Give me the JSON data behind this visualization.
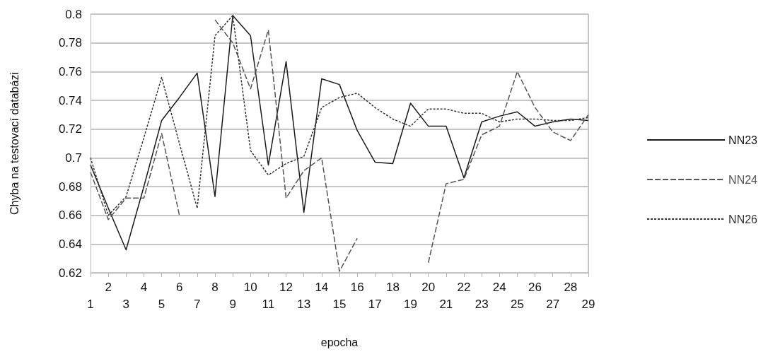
{
  "chart_data": {
    "type": "line",
    "xlabel": "epocha",
    "ylabel": "Chyba na testovací databázi",
    "categories": [
      "1",
      "2",
      "3",
      "4",
      "5",
      "6",
      "7",
      "8",
      "9",
      "10",
      "11",
      "12",
      "13",
      "14",
      "15",
      "16",
      "17",
      "18",
      "19",
      "20",
      "21",
      "22",
      "23",
      "24",
      "25",
      "26",
      "27",
      "28",
      "29"
    ],
    "series": [
      {
        "name": "NN23",
        "color": "#1a1a1a",
        "line_style": "solid",
        "values": [
          0.695,
          0.665,
          0.636,
          0.68,
          0.726,
          0.742,
          0.759,
          0.673,
          0.799,
          0.785,
          0.695,
          0.767,
          0.662,
          0.755,
          0.751,
          0.719,
          0.697,
          0.696,
          0.738,
          0.722,
          0.722,
          0.686,
          0.725,
          0.729,
          0.732,
          0.722,
          0.725,
          0.727,
          0.726
        ]
      },
      {
        "name": "NN24",
        "color": "#555555",
        "line_style": "dashed",
        "values": [
          0.69,
          0.657,
          0.672,
          0.672,
          0.717,
          0.66,
          null,
          0.796,
          0.78,
          0.748,
          0.789,
          0.672,
          0.691,
          0.7,
          0.621,
          0.644,
          null,
          null,
          null,
          0.627,
          0.682,
          0.685,
          0.716,
          0.722,
          0.76,
          0.735,
          0.718,
          0.712,
          0.73
        ]
      },
      {
        "name": "NN26",
        "color": "#333333",
        "line_style": "dotted",
        "values": [
          0.7,
          0.66,
          0.673,
          0.714,
          0.756,
          0.71,
          0.665,
          0.785,
          0.799,
          0.705,
          0.688,
          0.696,
          0.701,
          0.735,
          0.742,
          0.745,
          0.735,
          0.727,
          0.722,
          0.734,
          0.734,
          0.731,
          0.731,
          0.725,
          0.727,
          0.727,
          0.726,
          0.726,
          0.728
        ]
      }
    ],
    "ylim": [
      0.62,
      0.8
    ],
    "yticks": [
      0.62,
      0.64,
      0.66,
      0.68,
      0.7,
      0.72,
      0.74,
      0.76,
      0.78,
      0.8
    ],
    "grid": "y",
    "legend": "right",
    "marker": "none"
  }
}
